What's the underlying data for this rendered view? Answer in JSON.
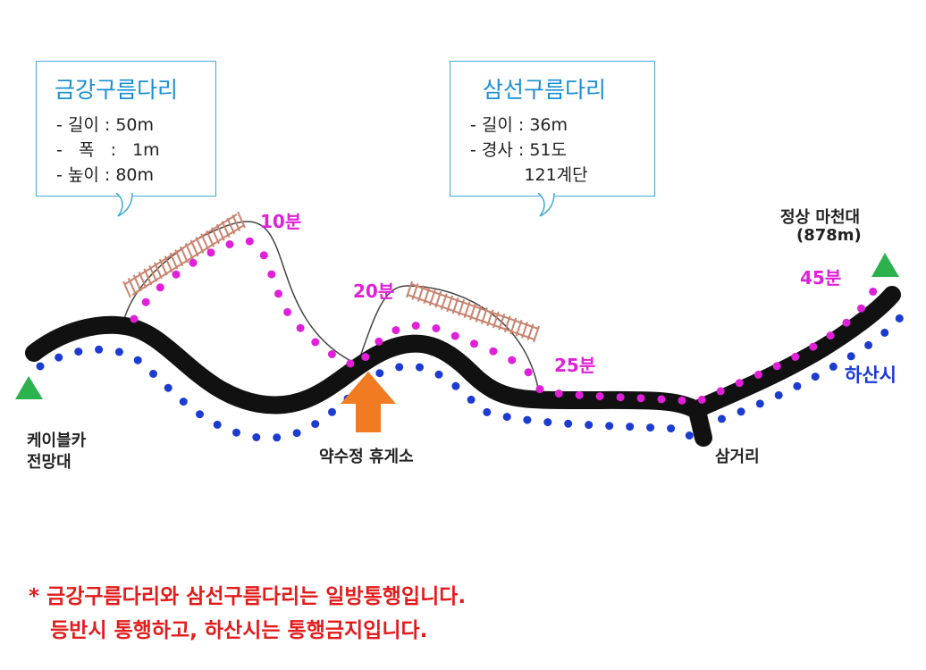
{
  "bridges": [
    {
      "name": "금강구름다리",
      "specs": [
        "- 길이 : 50m",
        "-   폭   :   1m",
        "- 높이 : 80m"
      ]
    },
    {
      "name": "삼선구름다리",
      "specs": [
        "- 길이 : 36m",
        "- 경사 : 51도",
        "          121계단"
      ]
    }
  ],
  "places": {
    "start_line1": "케이블카",
    "start_line2": "전망대",
    "rest_area": "약수정 휴게소",
    "junction": "삼거리",
    "summit_line1": "정상 마천대",
    "summit_line2": "(878m)"
  },
  "times": [
    "10분",
    "20분",
    "25분",
    "45분"
  ],
  "descent_label": "하산시",
  "notes": [
    "* 금강구름다리와 삼선구름다리는 일방통행입니다.",
    "   등반시 통행하고, 하산시는 통행금지입니다."
  ],
  "colors": {
    "ascent_dots": "#e020d8",
    "descent_dots": "#1c3bd0",
    "trail": "#111111",
    "marker": "#2bb24c",
    "arrow": "#f07b22",
    "callout_border": "#3fa9d6",
    "note_text": "#e31b1b"
  },
  "icons": [
    "triangle-marker-icon",
    "up-arrow-icon",
    "bridge-icon"
  ]
}
